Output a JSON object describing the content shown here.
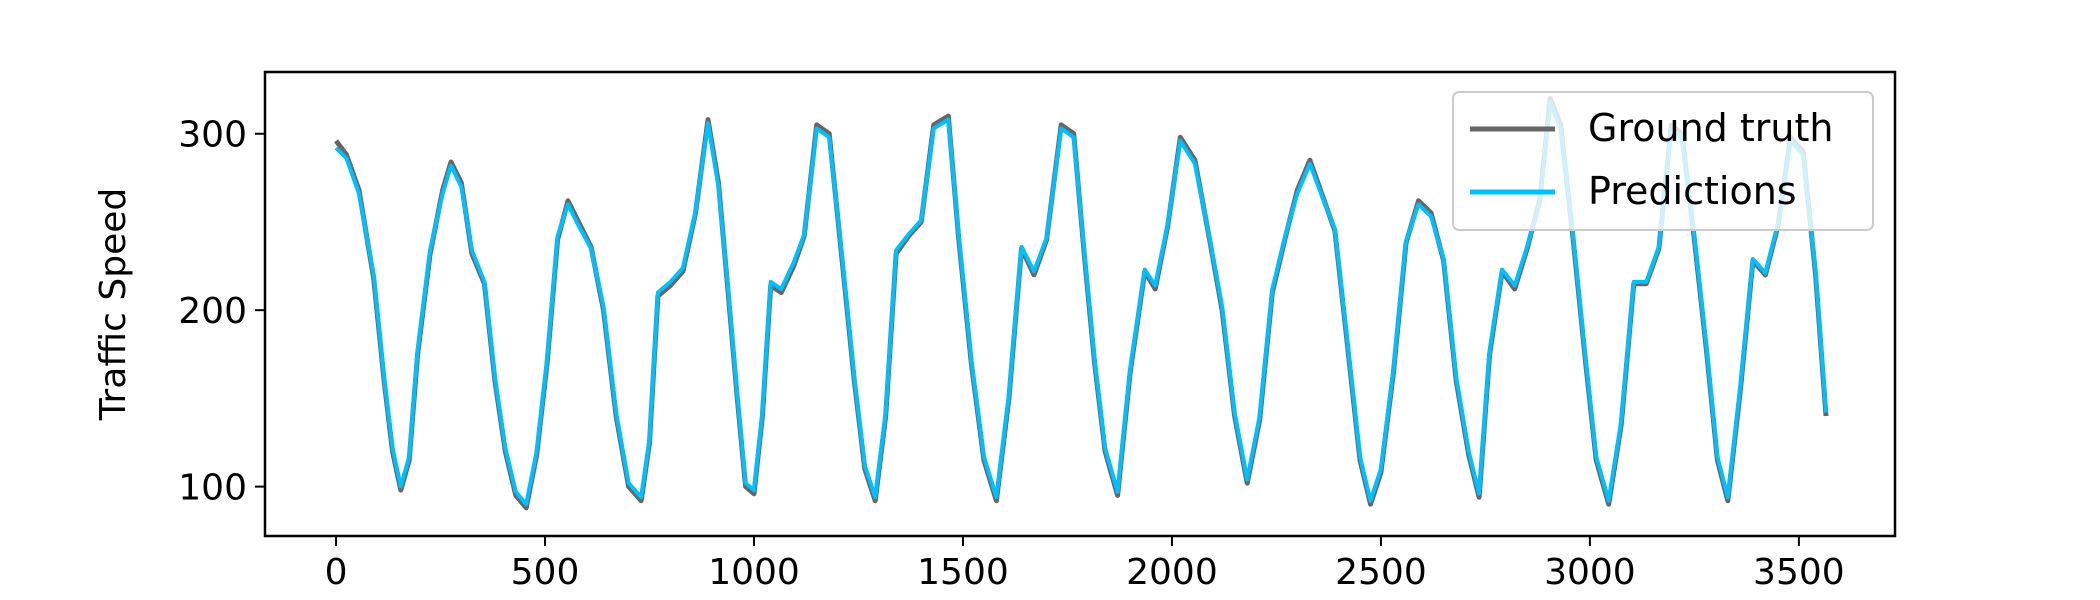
{
  "chart_data": {
    "type": "line",
    "title": "",
    "xlabel": "",
    "ylabel": "Traffic Speed",
    "xlim": [
      -170,
      3730
    ],
    "ylim": [
      72,
      335
    ],
    "xticks": [
      0,
      500,
      1000,
      1500,
      2000,
      2500,
      3000,
      3500
    ],
    "yticks": [
      100,
      200,
      300
    ],
    "grid": false,
    "legend": {
      "position": "top-right"
    },
    "series": [
      {
        "name": "Ground truth",
        "color": "#666666",
        "x": [
          0,
          25,
          55,
          90,
          115,
          135,
          155,
          175,
          195,
          225,
          255,
          275,
          300,
          325,
          355,
          380,
          405,
          430,
          455,
          480,
          505,
          530,
          555,
          580,
          610,
          640,
          670,
          700,
          730,
          750,
          770,
          800,
          830,
          860,
          890,
          915,
          940,
          960,
          980,
          1000,
          1020,
          1040,
          1065,
          1095,
          1120,
          1150,
          1180,
          1210,
          1240,
          1265,
          1290,
          1315,
          1340,
          1370,
          1400,
          1430,
          1465,
          1490,
          1520,
          1550,
          1580,
          1610,
          1640,
          1670,
          1700,
          1735,
          1765,
          1790,
          1815,
          1840,
          1870,
          1900,
          1935,
          1960,
          1990,
          2020,
          2055,
          2090,
          2120,
          2150,
          2180,
          2210,
          2240,
          2270,
          2300,
          2330,
          2360,
          2390,
          2420,
          2450,
          2475,
          2500,
          2530,
          2560,
          2590,
          2620,
          2650,
          2680,
          2710,
          2735,
          2760,
          2790,
          2820,
          2850,
          2880,
          2905,
          2930,
          2960,
          2990,
          3015,
          3045,
          3075,
          3105,
          3135,
          3165,
          3195,
          3220,
          3250,
          3280,
          3305,
          3330,
          3360,
          3390,
          3420,
          3450,
          3480,
          3510,
          3540,
          3565
        ],
        "values": [
          296,
          288,
          268,
          218,
          160,
          120,
          98,
          115,
          175,
          232,
          268,
          284,
          272,
          232,
          215,
          160,
          120,
          95,
          88,
          118,
          170,
          240,
          262,
          250,
          236,
          200,
          140,
          100,
          92,
          125,
          208,
          214,
          222,
          255,
          308,
          272,
          205,
          150,
          100,
          96,
          140,
          214,
          210,
          225,
          242,
          305,
          300,
          230,
          160,
          110,
          92,
          140,
          232,
          242,
          250,
          305,
          310,
          240,
          170,
          115,
          92,
          150,
          235,
          220,
          240,
          305,
          300,
          232,
          170,
          120,
          95,
          165,
          222,
          212,
          248,
          298,
          285,
          240,
          200,
          140,
          102,
          138,
          210,
          240,
          268,
          285,
          265,
          245,
          180,
          115,
          90,
          108,
          165,
          238,
          262,
          255,
          228,
          160,
          118,
          94,
          175,
          222,
          212,
          235,
          262,
          320,
          305,
          240,
          170,
          115,
          90,
          135,
          215,
          215,
          235,
          305,
          300,
          240,
          175,
          115,
          92,
          155,
          228,
          220,
          248,
          298,
          290,
          220,
          140
        ]
      },
      {
        "name": "Predictions",
        "color": "#00bfff",
        "x": [
          0,
          25,
          55,
          90,
          115,
          135,
          155,
          175,
          195,
          225,
          255,
          275,
          300,
          325,
          355,
          380,
          405,
          430,
          455,
          480,
          505,
          530,
          555,
          580,
          610,
          640,
          670,
          700,
          730,
          750,
          770,
          800,
          830,
          860,
          890,
          915,
          940,
          960,
          980,
          1000,
          1020,
          1040,
          1065,
          1095,
          1120,
          1150,
          1180,
          1210,
          1240,
          1265,
          1290,
          1315,
          1340,
          1370,
          1400,
          1430,
          1465,
          1490,
          1520,
          1550,
          1580,
          1610,
          1640,
          1670,
          1700,
          1735,
          1765,
          1790,
          1815,
          1840,
          1870,
          1900,
          1935,
          1960,
          1990,
          2020,
          2055,
          2090,
          2120,
          2150,
          2180,
          2210,
          2240,
          2270,
          2300,
          2330,
          2360,
          2390,
          2420,
          2450,
          2475,
          2500,
          2530,
          2560,
          2590,
          2620,
          2650,
          2680,
          2710,
          2735,
          2760,
          2790,
          2820,
          2850,
          2880,
          2905,
          2930,
          2960,
          2990,
          3015,
          3045,
          3075,
          3105,
          3135,
          3165,
          3195,
          3220,
          3250,
          3280,
          3305,
          3330,
          3360,
          3390,
          3420,
          3450,
          3480,
          3510,
          3540,
          3565
        ],
        "values": [
          292,
          286,
          266,
          220,
          162,
          122,
          100,
          117,
          177,
          234,
          266,
          282,
          270,
          234,
          216,
          162,
          122,
          97,
          90,
          120,
          172,
          242,
          260,
          248,
          235,
          202,
          142,
          102,
          94,
          127,
          210,
          216,
          224,
          256,
          306,
          270,
          207,
          152,
          102,
          98,
          142,
          216,
          212,
          227,
          243,
          303,
          298,
          232,
          162,
          112,
          94,
          142,
          234,
          243,
          251,
          303,
          308,
          242,
          172,
          117,
          94,
          152,
          236,
          222,
          241,
          303,
          298,
          234,
          172,
          122,
          97,
          167,
          223,
          214,
          249,
          296,
          283,
          241,
          202,
          142,
          104,
          140,
          212,
          241,
          266,
          283,
          264,
          246,
          182,
          117,
          92,
          110,
          167,
          239,
          260,
          253,
          229,
          162,
          120,
          96,
          177,
          223,
          214,
          236,
          261,
          318,
          303,
          242,
          172,
          117,
          92,
          137,
          216,
          216,
          236,
          303,
          298,
          242,
          177,
          117,
          94,
          157,
          229,
          221,
          249,
          296,
          288,
          222,
          142
        ]
      }
    ]
  }
}
